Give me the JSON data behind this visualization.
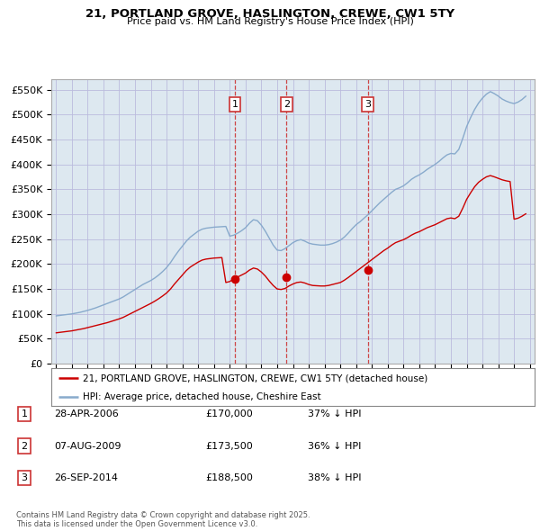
{
  "title": "21, PORTLAND GROVE, HASLINGTON, CREWE, CW1 5TY",
  "subtitle": "Price paid vs. HM Land Registry's House Price Index (HPI)",
  "legend_line1": "21, PORTLAND GROVE, HASLINGTON, CREWE, CW1 5TY (detached house)",
  "legend_line2": "HPI: Average price, detached house, Cheshire East",
  "footnote": "Contains HM Land Registry data © Crown copyright and database right 2025.\nThis data is licensed under the Open Government Licence v3.0.",
  "transactions": [
    {
      "num": 1,
      "date": "28-APR-2006",
      "price": "£170,000",
      "pct": "37% ↓ HPI",
      "year": 2006.32,
      "price_val": 170000
    },
    {
      "num": 2,
      "date": "07-AUG-2009",
      "price": "£173,500",
      "pct": "36% ↓ HPI",
      "year": 2009.6,
      "price_val": 173500
    },
    {
      "num": 3,
      "date": "26-SEP-2014",
      "price": "£188,500",
      "pct": "38% ↓ HPI",
      "year": 2014.74,
      "price_val": 188500
    }
  ],
  "red_line_color": "#cc0000",
  "blue_line_color": "#88aacc",
  "vline_color": "#cc3333",
  "grid_color": "#bbbbdd",
  "bg_color": "#dde8f0",
  "ylim": [
    0,
    570000
  ],
  "yticks": [
    0,
    50000,
    100000,
    150000,
    200000,
    250000,
    300000,
    350000,
    400000,
    450000,
    500000,
    550000
  ],
  "xlim_start": 1994.7,
  "xlim_end": 2025.3,
  "hpi_data": {
    "years": [
      1995.0,
      1995.25,
      1995.5,
      1995.75,
      1996.0,
      1996.25,
      1996.5,
      1996.75,
      1997.0,
      1997.25,
      1997.5,
      1997.75,
      1998.0,
      1998.25,
      1998.5,
      1998.75,
      1999.0,
      1999.25,
      1999.5,
      1999.75,
      2000.0,
      2000.25,
      2000.5,
      2000.75,
      2001.0,
      2001.25,
      2001.5,
      2001.75,
      2002.0,
      2002.25,
      2002.5,
      2002.75,
      2003.0,
      2003.25,
      2003.5,
      2003.75,
      2004.0,
      2004.25,
      2004.5,
      2004.75,
      2005.0,
      2005.25,
      2005.5,
      2005.75,
      2006.0,
      2006.25,
      2006.5,
      2006.75,
      2007.0,
      2007.25,
      2007.5,
      2007.75,
      2008.0,
      2008.25,
      2008.5,
      2008.75,
      2009.0,
      2009.25,
      2009.5,
      2009.75,
      2010.0,
      2010.25,
      2010.5,
      2010.75,
      2011.0,
      2011.25,
      2011.5,
      2011.75,
      2012.0,
      2012.25,
      2012.5,
      2012.75,
      2013.0,
      2013.25,
      2013.5,
      2013.75,
      2014.0,
      2014.25,
      2014.5,
      2014.75,
      2015.0,
      2015.25,
      2015.5,
      2015.75,
      2016.0,
      2016.25,
      2016.5,
      2016.75,
      2017.0,
      2017.25,
      2017.5,
      2017.75,
      2018.0,
      2018.25,
      2018.5,
      2018.75,
      2019.0,
      2019.25,
      2019.5,
      2019.75,
      2020.0,
      2020.25,
      2020.5,
      2020.75,
      2021.0,
      2021.25,
      2021.5,
      2021.75,
      2022.0,
      2022.25,
      2022.5,
      2022.75,
      2023.0,
      2023.25,
      2023.5,
      2023.75,
      2024.0,
      2024.25,
      2024.5,
      2024.75
    ],
    "values": [
      96000,
      97000,
      98000,
      99000,
      100000,
      101500,
      103000,
      105000,
      107000,
      109500,
      112000,
      115000,
      118000,
      121000,
      124000,
      127000,
      130000,
      134000,
      139000,
      144000,
      149000,
      154000,
      159000,
      163000,
      167000,
      172000,
      178000,
      185000,
      193000,
      203000,
      215000,
      226000,
      236000,
      246000,
      254000,
      260000,
      266000,
      270000,
      272000,
      273000,
      274000,
      274500,
      275000,
      275500,
      256000,
      258000,
      262000,
      267000,
      273000,
      282000,
      289000,
      287000,
      278000,
      266000,
      252000,
      238000,
      228000,
      227000,
      231000,
      237000,
      243000,
      247000,
      249000,
      246000,
      242000,
      240000,
      239000,
      238000,
      238000,
      239000,
      241000,
      244000,
      248000,
      254000,
      262000,
      271000,
      279000,
      285000,
      292000,
      299000,
      307000,
      315000,
      323000,
      330000,
      337000,
      344000,
      350000,
      353000,
      357000,
      363000,
      370000,
      375000,
      379000,
      384000,
      390000,
      395000,
      400000,
      406000,
      413000,
      419000,
      422000,
      421000,
      430000,
      452000,
      476000,
      494000,
      510000,
      523000,
      533000,
      541000,
      546000,
      542000,
      537000,
      531000,
      527000,
      524000,
      522000,
      525000,
      530000,
      537000
    ]
  },
  "property_data": {
    "years": [
      1995.0,
      1995.25,
      1995.5,
      1995.75,
      1996.0,
      1996.25,
      1996.5,
      1996.75,
      1997.0,
      1997.25,
      1997.5,
      1997.75,
      1998.0,
      1998.25,
      1998.5,
      1998.75,
      1999.0,
      1999.25,
      1999.5,
      1999.75,
      2000.0,
      2000.25,
      2000.5,
      2000.75,
      2001.0,
      2001.25,
      2001.5,
      2001.75,
      2002.0,
      2002.25,
      2002.5,
      2002.75,
      2003.0,
      2003.25,
      2003.5,
      2003.75,
      2004.0,
      2004.25,
      2004.5,
      2004.75,
      2005.0,
      2005.25,
      2005.5,
      2005.75,
      2006.0,
      2006.25,
      2006.5,
      2006.75,
      2007.0,
      2007.25,
      2007.5,
      2007.75,
      2008.0,
      2008.25,
      2008.5,
      2008.75,
      2009.0,
      2009.25,
      2009.5,
      2009.75,
      2010.0,
      2010.25,
      2010.5,
      2010.75,
      2011.0,
      2011.25,
      2011.5,
      2011.75,
      2012.0,
      2012.25,
      2012.5,
      2012.75,
      2013.0,
      2013.25,
      2013.5,
      2013.75,
      2014.0,
      2014.25,
      2014.5,
      2014.75,
      2015.0,
      2015.25,
      2015.5,
      2015.75,
      2016.0,
      2016.25,
      2016.5,
      2016.75,
      2017.0,
      2017.25,
      2017.5,
      2017.75,
      2018.0,
      2018.25,
      2018.5,
      2018.75,
      2019.0,
      2019.25,
      2019.5,
      2019.75,
      2020.0,
      2020.25,
      2020.5,
      2020.75,
      2021.0,
      2021.25,
      2021.5,
      2021.75,
      2022.0,
      2022.25,
      2022.5,
      2022.75,
      2023.0,
      2023.25,
      2023.5,
      2023.75,
      2024.0,
      2024.25,
      2024.5,
      2024.75
    ],
    "values": [
      62000,
      63000,
      64000,
      65000,
      66000,
      67500,
      69000,
      70500,
      72500,
      74500,
      76500,
      78500,
      80500,
      82500,
      85000,
      87500,
      90000,
      93000,
      97000,
      101000,
      105000,
      109000,
      113000,
      117000,
      121000,
      125500,
      130500,
      136000,
      142000,
      150000,
      160000,
      169000,
      178000,
      187000,
      194000,
      199000,
      204000,
      208000,
      210000,
      211000,
      212000,
      212500,
      213000,
      163000,
      165000,
      170000,
      174000,
      178000,
      182000,
      188000,
      192000,
      190000,
      184000,
      176000,
      166000,
      157000,
      150000,
      149000,
      151000,
      156000,
      160000,
      163000,
      164000,
      162000,
      159000,
      157000,
      156500,
      156000,
      156000,
      157000,
      159000,
      161000,
      163000,
      167500,
      173000,
      179000,
      185000,
      191000,
      197000,
      203000,
      209000,
      215000,
      221000,
      227000,
      232000,
      238000,
      243000,
      246000,
      249000,
      253000,
      258000,
      262000,
      265000,
      269000,
      273000,
      276000,
      279000,
      283000,
      287000,
      291000,
      292500,
      291000,
      296000,
      312000,
      330000,
      343000,
      355000,
      364000,
      370000,
      375000,
      377500,
      375000,
      372000,
      369000,
      367000,
      365500,
      290000,
      292000,
      296000,
      301000
    ]
  }
}
